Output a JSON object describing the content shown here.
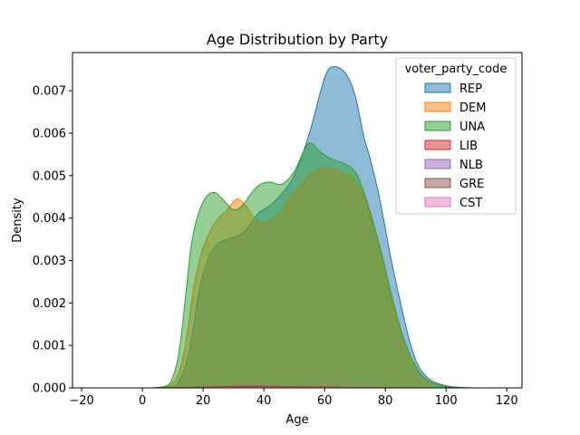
{
  "chart_data": {
    "type": "area",
    "title": "Age Distribution by Party",
    "xlabel": "Age",
    "ylabel": "Density",
    "xlim": [
      -23,
      125
    ],
    "ylim": [
      0,
      0.0079
    ],
    "xticks": [
      -20,
      0,
      20,
      40,
      60,
      80,
      100,
      120
    ],
    "yticks": [
      0.0,
      0.001,
      0.002,
      0.003,
      0.004,
      0.005,
      0.006,
      0.007
    ],
    "ytick_labels": [
      "0.000",
      "0.001",
      "0.002",
      "0.003",
      "0.004",
      "0.005",
      "0.006",
      "0.007"
    ],
    "grid": false,
    "legend": {
      "title": "voter_party_code",
      "placement": "top-right"
    },
    "series": [
      {
        "name": "REP",
        "color": "#1f77b4",
        "points": [
          [
            5,
            0
          ],
          [
            10,
            3e-05
          ],
          [
            12,
            0.00015
          ],
          [
            15,
            0.0007
          ],
          [
            17,
            0.0015
          ],
          [
            19,
            0.0024
          ],
          [
            22,
            0.0031
          ],
          [
            25,
            0.0034
          ],
          [
            28,
            0.0035
          ],
          [
            32,
            0.0036
          ],
          [
            35,
            0.0038
          ],
          [
            38,
            0.0041
          ],
          [
            42,
            0.0043
          ],
          [
            45,
            0.0045
          ],
          [
            50,
            0.005
          ],
          [
            55,
            0.006
          ],
          [
            60,
            0.0073
          ],
          [
            63,
            0.00757
          ],
          [
            67,
            0.0074
          ],
          [
            70,
            0.0069
          ],
          [
            73,
            0.0059
          ],
          [
            75,
            0.0054
          ],
          [
            78,
            0.0045
          ],
          [
            82,
            0.003
          ],
          [
            85,
            0.002
          ],
          [
            88,
            0.0011
          ],
          [
            91,
            0.0005
          ],
          [
            95,
            0.00018
          ],
          [
            100,
            5e-05
          ],
          [
            105,
            1e-05
          ],
          [
            110,
            0
          ]
        ]
      },
      {
        "name": "DEM",
        "color": "#ff7f0e",
        "points": [
          [
            3,
            0
          ],
          [
            8,
            3e-05
          ],
          [
            11,
            0.0002
          ],
          [
            13,
            0.0006
          ],
          [
            15,
            0.0014
          ],
          [
            17,
            0.0024
          ],
          [
            20,
            0.0033
          ],
          [
            24,
            0.0039
          ],
          [
            28,
            0.0042
          ],
          [
            31,
            0.00445
          ],
          [
            34,
            0.0043
          ],
          [
            37,
            0.004
          ],
          [
            40,
            0.0039
          ],
          [
            45,
            0.0041
          ],
          [
            50,
            0.0046
          ],
          [
            55,
            0.005
          ],
          [
            60,
            0.0052
          ],
          [
            65,
            0.0051
          ],
          [
            70,
            0.0049
          ],
          [
            73,
            0.0045
          ],
          [
            76,
            0.0038
          ],
          [
            79,
            0.003
          ],
          [
            82,
            0.0021
          ],
          [
            85,
            0.0013
          ],
          [
            88,
            0.0007
          ],
          [
            92,
            0.0003
          ],
          [
            96,
            0.0001
          ],
          [
            100,
            3e-05
          ],
          [
            106,
            0
          ]
        ]
      },
      {
        "name": "UNA",
        "color": "#2ca02c",
        "points": [
          [
            3,
            0
          ],
          [
            8,
            5e-05
          ],
          [
            10,
            0.00025
          ],
          [
            12,
            0.0008
          ],
          [
            14,
            0.002
          ],
          [
            16,
            0.0033
          ],
          [
            18,
            0.004
          ],
          [
            21,
            0.0045
          ],
          [
            24,
            0.0046
          ],
          [
            27,
            0.0044
          ],
          [
            30,
            0.0042
          ],
          [
            33,
            0.0043
          ],
          [
            36,
            0.0046
          ],
          [
            39,
            0.0048
          ],
          [
            42,
            0.00485
          ],
          [
            46,
            0.0048
          ],
          [
            50,
            0.0051
          ],
          [
            54,
            0.0057
          ],
          [
            56,
            0.00575
          ],
          [
            58,
            0.0056
          ],
          [
            62,
            0.0054
          ],
          [
            66,
            0.0053
          ],
          [
            70,
            0.0051
          ],
          [
            73,
            0.0046
          ],
          [
            76,
            0.0039
          ],
          [
            79,
            0.0031
          ],
          [
            82,
            0.0022
          ],
          [
            85,
            0.0014
          ],
          [
            88,
            0.0008
          ],
          [
            92,
            0.0003
          ],
          [
            96,
            0.0001
          ],
          [
            100,
            3e-05
          ],
          [
            106,
            0
          ]
        ]
      },
      {
        "name": "LIB",
        "color": "#d62728",
        "points": [
          [
            10,
            0
          ],
          [
            20,
            2e-05
          ],
          [
            30,
            4e-05
          ],
          [
            40,
            4e-05
          ],
          [
            50,
            3e-05
          ],
          [
            60,
            2e-05
          ],
          [
            70,
            1e-05
          ],
          [
            80,
            0
          ]
        ]
      },
      {
        "name": "NLB",
        "color": "#9467bd",
        "points": [
          [
            10,
            0
          ],
          [
            20,
            1e-05
          ],
          [
            40,
            1e-05
          ],
          [
            60,
            1e-05
          ],
          [
            80,
            0
          ]
        ]
      },
      {
        "name": "GRE",
        "color": "#8c564b",
        "points": [
          [
            10,
            0
          ],
          [
            20,
            2e-05
          ],
          [
            30,
            3e-05
          ],
          [
            40,
            3e-05
          ],
          [
            50,
            2e-05
          ],
          [
            60,
            1e-05
          ],
          [
            80,
            0
          ]
        ]
      },
      {
        "name": "CST",
        "color": "#e377c2",
        "points": [
          [
            10,
            0
          ],
          [
            30,
            1e-05
          ],
          [
            50,
            1e-05
          ],
          [
            70,
            1e-05
          ],
          [
            90,
            0
          ]
        ]
      }
    ]
  }
}
